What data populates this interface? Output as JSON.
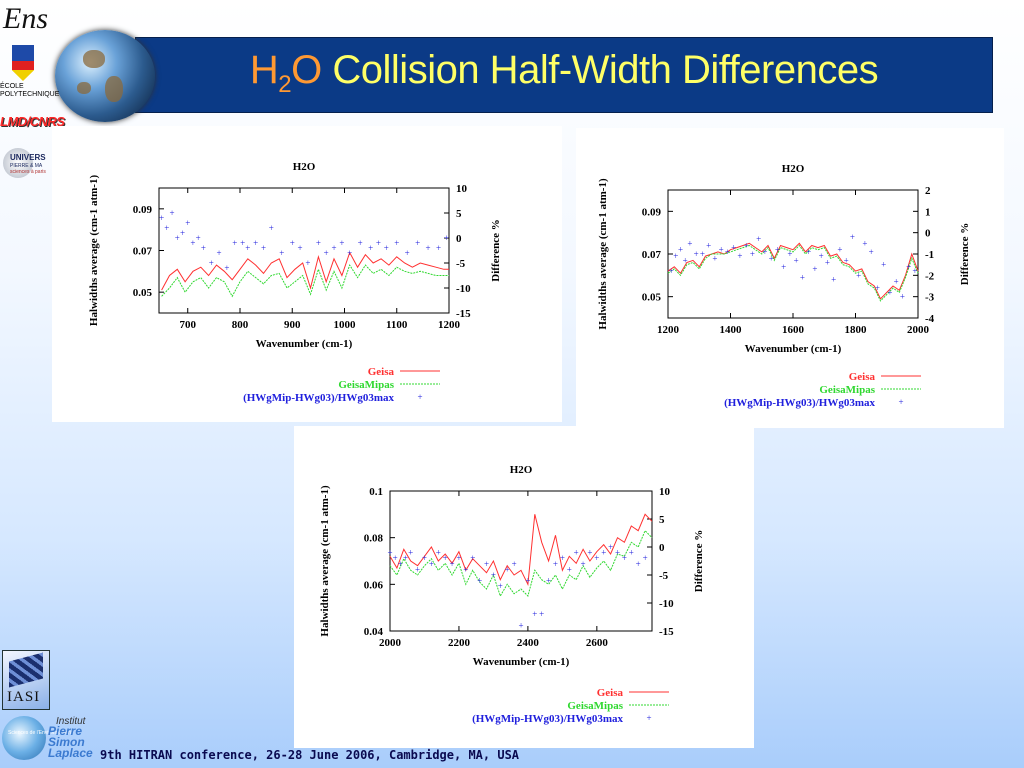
{
  "slide": {
    "title_molecule": "H",
    "title_sub": "2",
    "title_o": "O",
    "title_rest": " Collision Half-Width Differences",
    "footer": "9th HITRAN conference, 26-28 June 2006, Cambridge, MA, USA"
  },
  "logos": {
    "ens": "Ens",
    "polytechnique": "ÉCOLE POLYTECHNIQUE",
    "lmd": "LMD/CNRS",
    "univ": "UNIVERS",
    "univ_line2": "PIERRE & MA",
    "univ_line3": "sciences à paris",
    "iasi": "IASI",
    "ipsl_small": "Sciences de l'Environnement",
    "ipsl_institut": "Institut",
    "ipsl_name": "Pierre Simon Laplace"
  },
  "colors": {
    "geisa": "#ff3030",
    "geisamipas": "#30d830",
    "diff": "#2020dd",
    "title_bg": "#0b3a86",
    "title_text": "#ffff66",
    "title_h2o": "#ff9933"
  },
  "chart_data": [
    {
      "type": "line",
      "title": "H2O",
      "xlabel": "Wavenumber (cm-1)",
      "ylabel": "Halwidths average (cm-1 atm-1)",
      "y2label": "Difference %",
      "xlim": [
        645,
        1200
      ],
      "ylim": [
        0.04,
        0.1
      ],
      "y2lim": [
        -15,
        10
      ],
      "xticks": [
        "700",
        "800",
        "900",
        "1000",
        "1100",
        "1200"
      ],
      "yticks": [
        "0.05",
        "0.07",
        "0.09"
      ],
      "y2ticks": [
        "10",
        "5",
        "0",
        "-5",
        "-10",
        "-15"
      ],
      "legend": [
        "Geisa",
        "GeisaMipas",
        "(HWgMip-HWg03)/HWg03max"
      ],
      "series": [
        {
          "name": "Geisa",
          "x": [
            650,
            665,
            680,
            695,
            710,
            725,
            740,
            755,
            770,
            785,
            800,
            815,
            830,
            845,
            860,
            875,
            890,
            905,
            920,
            935,
            950,
            965,
            980,
            995,
            1010,
            1025,
            1040,
            1055,
            1070,
            1085,
            1100,
            1115,
            1130,
            1145,
            1160,
            1175,
            1190,
            1200
          ],
          "values": [
            0.051,
            0.058,
            0.061,
            0.055,
            0.06,
            0.062,
            0.058,
            0.063,
            0.06,
            0.056,
            0.061,
            0.066,
            0.063,
            0.059,
            0.064,
            0.066,
            0.057,
            0.061,
            0.064,
            0.052,
            0.067,
            0.055,
            0.066,
            0.058,
            0.069,
            0.062,
            0.068,
            0.064,
            0.066,
            0.063,
            0.067,
            0.064,
            0.062,
            0.064,
            0.063,
            0.062,
            0.061,
            0.061
          ]
        },
        {
          "name": "GeisaMipas",
          "x": [
            650,
            665,
            680,
            695,
            710,
            725,
            740,
            755,
            770,
            785,
            800,
            815,
            830,
            845,
            860,
            875,
            890,
            905,
            920,
            935,
            950,
            965,
            980,
            995,
            1010,
            1025,
            1040,
            1055,
            1070,
            1085,
            1100,
            1115,
            1130,
            1145,
            1160,
            1175,
            1190,
            1200
          ],
          "values": [
            0.048,
            0.052,
            0.057,
            0.05,
            0.055,
            0.057,
            0.052,
            0.057,
            0.055,
            0.048,
            0.055,
            0.06,
            0.057,
            0.054,
            0.058,
            0.059,
            0.052,
            0.055,
            0.058,
            0.049,
            0.061,
            0.051,
            0.06,
            0.052,
            0.063,
            0.057,
            0.063,
            0.059,
            0.061,
            0.058,
            0.062,
            0.06,
            0.059,
            0.06,
            0.059,
            0.058,
            0.058,
            0.058
          ]
        },
        {
          "name": "(HWgMip-HWg03)/HWg03max",
          "x": [
            650,
            660,
            670,
            680,
            690,
            700,
            710,
            720,
            730,
            745,
            760,
            775,
            790,
            805,
            815,
            830,
            845,
            860,
            880,
            900,
            915,
            930,
            950,
            965,
            980,
            995,
            1010,
            1030,
            1050,
            1065,
            1080,
            1100,
            1120,
            1140,
            1160,
            1180,
            1195
          ],
          "values": [
            4,
            2,
            5,
            0,
            1,
            3,
            -1,
            0,
            -2,
            -5,
            -3,
            -6,
            -1,
            -1,
            -2,
            -1,
            -2,
            2,
            -3,
            -1,
            -2,
            -5,
            -1,
            -3,
            -2,
            -1,
            -3,
            -1,
            -2,
            -1,
            -2,
            -1,
            -3,
            -1,
            -2,
            -2,
            0
          ]
        }
      ]
    },
    {
      "type": "line",
      "title": "H2O",
      "xlabel": "Wavenumber (cm-1)",
      "ylabel": "Halwidths average (cm-1 atm-1)",
      "y2label": "Difference %",
      "xlim": [
        1200,
        2000
      ],
      "ylim": [
        0.04,
        0.1
      ],
      "y2lim": [
        -4,
        2
      ],
      "xticks": [
        "1200",
        "1400",
        "1600",
        "1800",
        "2000"
      ],
      "yticks": [
        "0.05",
        "0.07",
        "0.09"
      ],
      "y2ticks": [
        "2",
        "1",
        "0",
        "-1",
        "-2",
        "-3",
        "-4"
      ],
      "legend": [
        "Geisa",
        "GeisaMipas",
        "(HWgMip-HWg03)/HWg03max"
      ],
      "series": [
        {
          "name": "Geisa",
          "x": [
            1200,
            1220,
            1240,
            1260,
            1280,
            1300,
            1320,
            1340,
            1360,
            1380,
            1400,
            1420,
            1440,
            1460,
            1480,
            1500,
            1520,
            1540,
            1560,
            1580,
            1600,
            1620,
            1640,
            1660,
            1680,
            1700,
            1720,
            1740,
            1760,
            1780,
            1800,
            1820,
            1840,
            1860,
            1880,
            1900,
            1920,
            1940,
            1960,
            1980,
            2000
          ],
          "values": [
            0.062,
            0.064,
            0.061,
            0.066,
            0.067,
            0.064,
            0.069,
            0.07,
            0.071,
            0.07,
            0.072,
            0.073,
            0.074,
            0.075,
            0.073,
            0.071,
            0.074,
            0.068,
            0.074,
            0.073,
            0.072,
            0.075,
            0.071,
            0.074,
            0.073,
            0.074,
            0.069,
            0.07,
            0.066,
            0.065,
            0.062,
            0.063,
            0.057,
            0.055,
            0.049,
            0.052,
            0.055,
            0.053,
            0.06,
            0.07,
            0.062
          ]
        },
        {
          "name": "GeisaMipas",
          "x": [
            1200,
            1220,
            1240,
            1260,
            1280,
            1300,
            1320,
            1340,
            1360,
            1380,
            1400,
            1420,
            1440,
            1460,
            1480,
            1500,
            1520,
            1540,
            1560,
            1580,
            1600,
            1620,
            1640,
            1660,
            1680,
            1700,
            1720,
            1740,
            1760,
            1780,
            1800,
            1820,
            1840,
            1860,
            1880,
            1900,
            1920,
            1940,
            1960,
            1980,
            2000
          ],
          "values": [
            0.061,
            0.063,
            0.06,
            0.065,
            0.066,
            0.063,
            0.068,
            0.07,
            0.07,
            0.07,
            0.071,
            0.072,
            0.073,
            0.074,
            0.072,
            0.07,
            0.073,
            0.067,
            0.073,
            0.072,
            0.071,
            0.074,
            0.07,
            0.073,
            0.072,
            0.073,
            0.068,
            0.069,
            0.065,
            0.064,
            0.061,
            0.062,
            0.056,
            0.054,
            0.048,
            0.051,
            0.054,
            0.052,
            0.059,
            0.068,
            0.061
          ]
        },
        {
          "name": "(HWgMip-HWg03)/HWg03max",
          "x": [
            1210,
            1225,
            1240,
            1255,
            1270,
            1290,
            1310,
            1330,
            1350,
            1370,
            1390,
            1410,
            1430,
            1450,
            1470,
            1490,
            1510,
            1530,
            1550,
            1570,
            1590,
            1610,
            1630,
            1650,
            1670,
            1690,
            1710,
            1730,
            1750,
            1770,
            1790,
            1810,
            1830,
            1850,
            1870,
            1890,
            1910,
            1930,
            1950,
            1970,
            1990
          ],
          "values": [
            -1.8,
            -1.1,
            -0.8,
            -1.3,
            -0.5,
            -1.0,
            -1.0,
            -0.6,
            -1.2,
            -0.8,
            -0.9,
            -0.7,
            -1.1,
            -0.6,
            -1.0,
            -0.3,
            -0.9,
            -1.2,
            -0.8,
            -1.6,
            -1.0,
            -1.3,
            -2.1,
            -0.9,
            -1.7,
            -1.1,
            -1.4,
            -2.2,
            -0.8,
            -1.3,
            -0.2,
            -2.0,
            -0.5,
            -0.9,
            -2.6,
            -1.5,
            -2.8,
            -2.3,
            -3.0,
            -1.6,
            -1.8
          ]
        }
      ]
    },
    {
      "type": "line",
      "title": "H2O",
      "xlabel": "Wavenumber (cm-1)",
      "ylabel": "Halwidths average (cm-1 atm-1)",
      "y2label": "Difference %",
      "xlim": [
        2000,
        2760
      ],
      "ylim": [
        0.04,
        0.1
      ],
      "y2lim": [
        -15,
        10
      ],
      "xticks": [
        "2000",
        "2200",
        "2400",
        "2600"
      ],
      "yticks": [
        "0.04",
        "0.06",
        "0.08",
        "0.1"
      ],
      "y2ticks": [
        "10",
        "5",
        "0",
        "-5",
        "-10",
        "-15"
      ],
      "legend": [
        "Geisa",
        "GeisaMipas",
        "(HWgMip-HWg03)/HWg03max"
      ],
      "series": [
        {
          "name": "Geisa",
          "x": [
            2000,
            2020,
            2040,
            2060,
            2080,
            2100,
            2120,
            2140,
            2160,
            2180,
            2200,
            2220,
            2240,
            2260,
            2280,
            2300,
            2320,
            2340,
            2360,
            2380,
            2400,
            2420,
            2440,
            2460,
            2480,
            2500,
            2520,
            2540,
            2560,
            2580,
            2600,
            2620,
            2640,
            2660,
            2680,
            2700,
            2720,
            2740,
            2760
          ],
          "values": [
            0.072,
            0.067,
            0.075,
            0.07,
            0.068,
            0.072,
            0.076,
            0.07,
            0.073,
            0.069,
            0.074,
            0.066,
            0.071,
            0.068,
            0.065,
            0.07,
            0.062,
            0.068,
            0.064,
            0.066,
            0.06,
            0.09,
            0.078,
            0.07,
            0.081,
            0.066,
            0.072,
            0.069,
            0.075,
            0.07,
            0.074,
            0.077,
            0.073,
            0.08,
            0.078,
            0.085,
            0.083,
            0.09,
            0.087
          ]
        },
        {
          "name": "GeisaMipas",
          "x": [
            2000,
            2020,
            2040,
            2060,
            2080,
            2100,
            2120,
            2140,
            2160,
            2180,
            2200,
            2220,
            2240,
            2260,
            2280,
            2300,
            2320,
            2340,
            2360,
            2380,
            2400,
            2420,
            2440,
            2460,
            2480,
            2500,
            2520,
            2540,
            2560,
            2580,
            2600,
            2620,
            2640,
            2660,
            2680,
            2700,
            2720,
            2740,
            2760
          ],
          "values": [
            0.068,
            0.064,
            0.071,
            0.066,
            0.064,
            0.068,
            0.071,
            0.066,
            0.069,
            0.064,
            0.069,
            0.06,
            0.066,
            0.061,
            0.058,
            0.064,
            0.055,
            0.06,
            0.056,
            0.058,
            0.055,
            0.066,
            0.062,
            0.06,
            0.064,
            0.058,
            0.064,
            0.062,
            0.068,
            0.063,
            0.067,
            0.07,
            0.066,
            0.073,
            0.072,
            0.078,
            0.076,
            0.083,
            0.08
          ]
        },
        {
          "name": "(HWgMip-HWg03)/HWg03max",
          "x": [
            2000,
            2015,
            2030,
            2045,
            2060,
            2080,
            2100,
            2120,
            2140,
            2160,
            2180,
            2200,
            2220,
            2240,
            2260,
            2280,
            2300,
            2320,
            2340,
            2360,
            2380,
            2400,
            2420,
            2440,
            2460,
            2480,
            2500,
            2520,
            2540,
            2560,
            2580,
            2600,
            2620,
            2640,
            2660,
            2680,
            2700,
            2720,
            2740
          ],
          "values": [
            -1,
            -2,
            -3,
            -2,
            -1,
            -4,
            -2,
            -3,
            -1,
            -2,
            -3,
            -2,
            -4,
            -2,
            -6,
            -3,
            -5,
            -7,
            -4,
            -3,
            -14,
            -6,
            -12,
            -12,
            -6,
            -3,
            -2,
            -4,
            -1,
            -3,
            -1,
            -2,
            -1,
            0,
            -1,
            -2,
            -1,
            -3,
            -2
          ]
        }
      ]
    }
  ]
}
